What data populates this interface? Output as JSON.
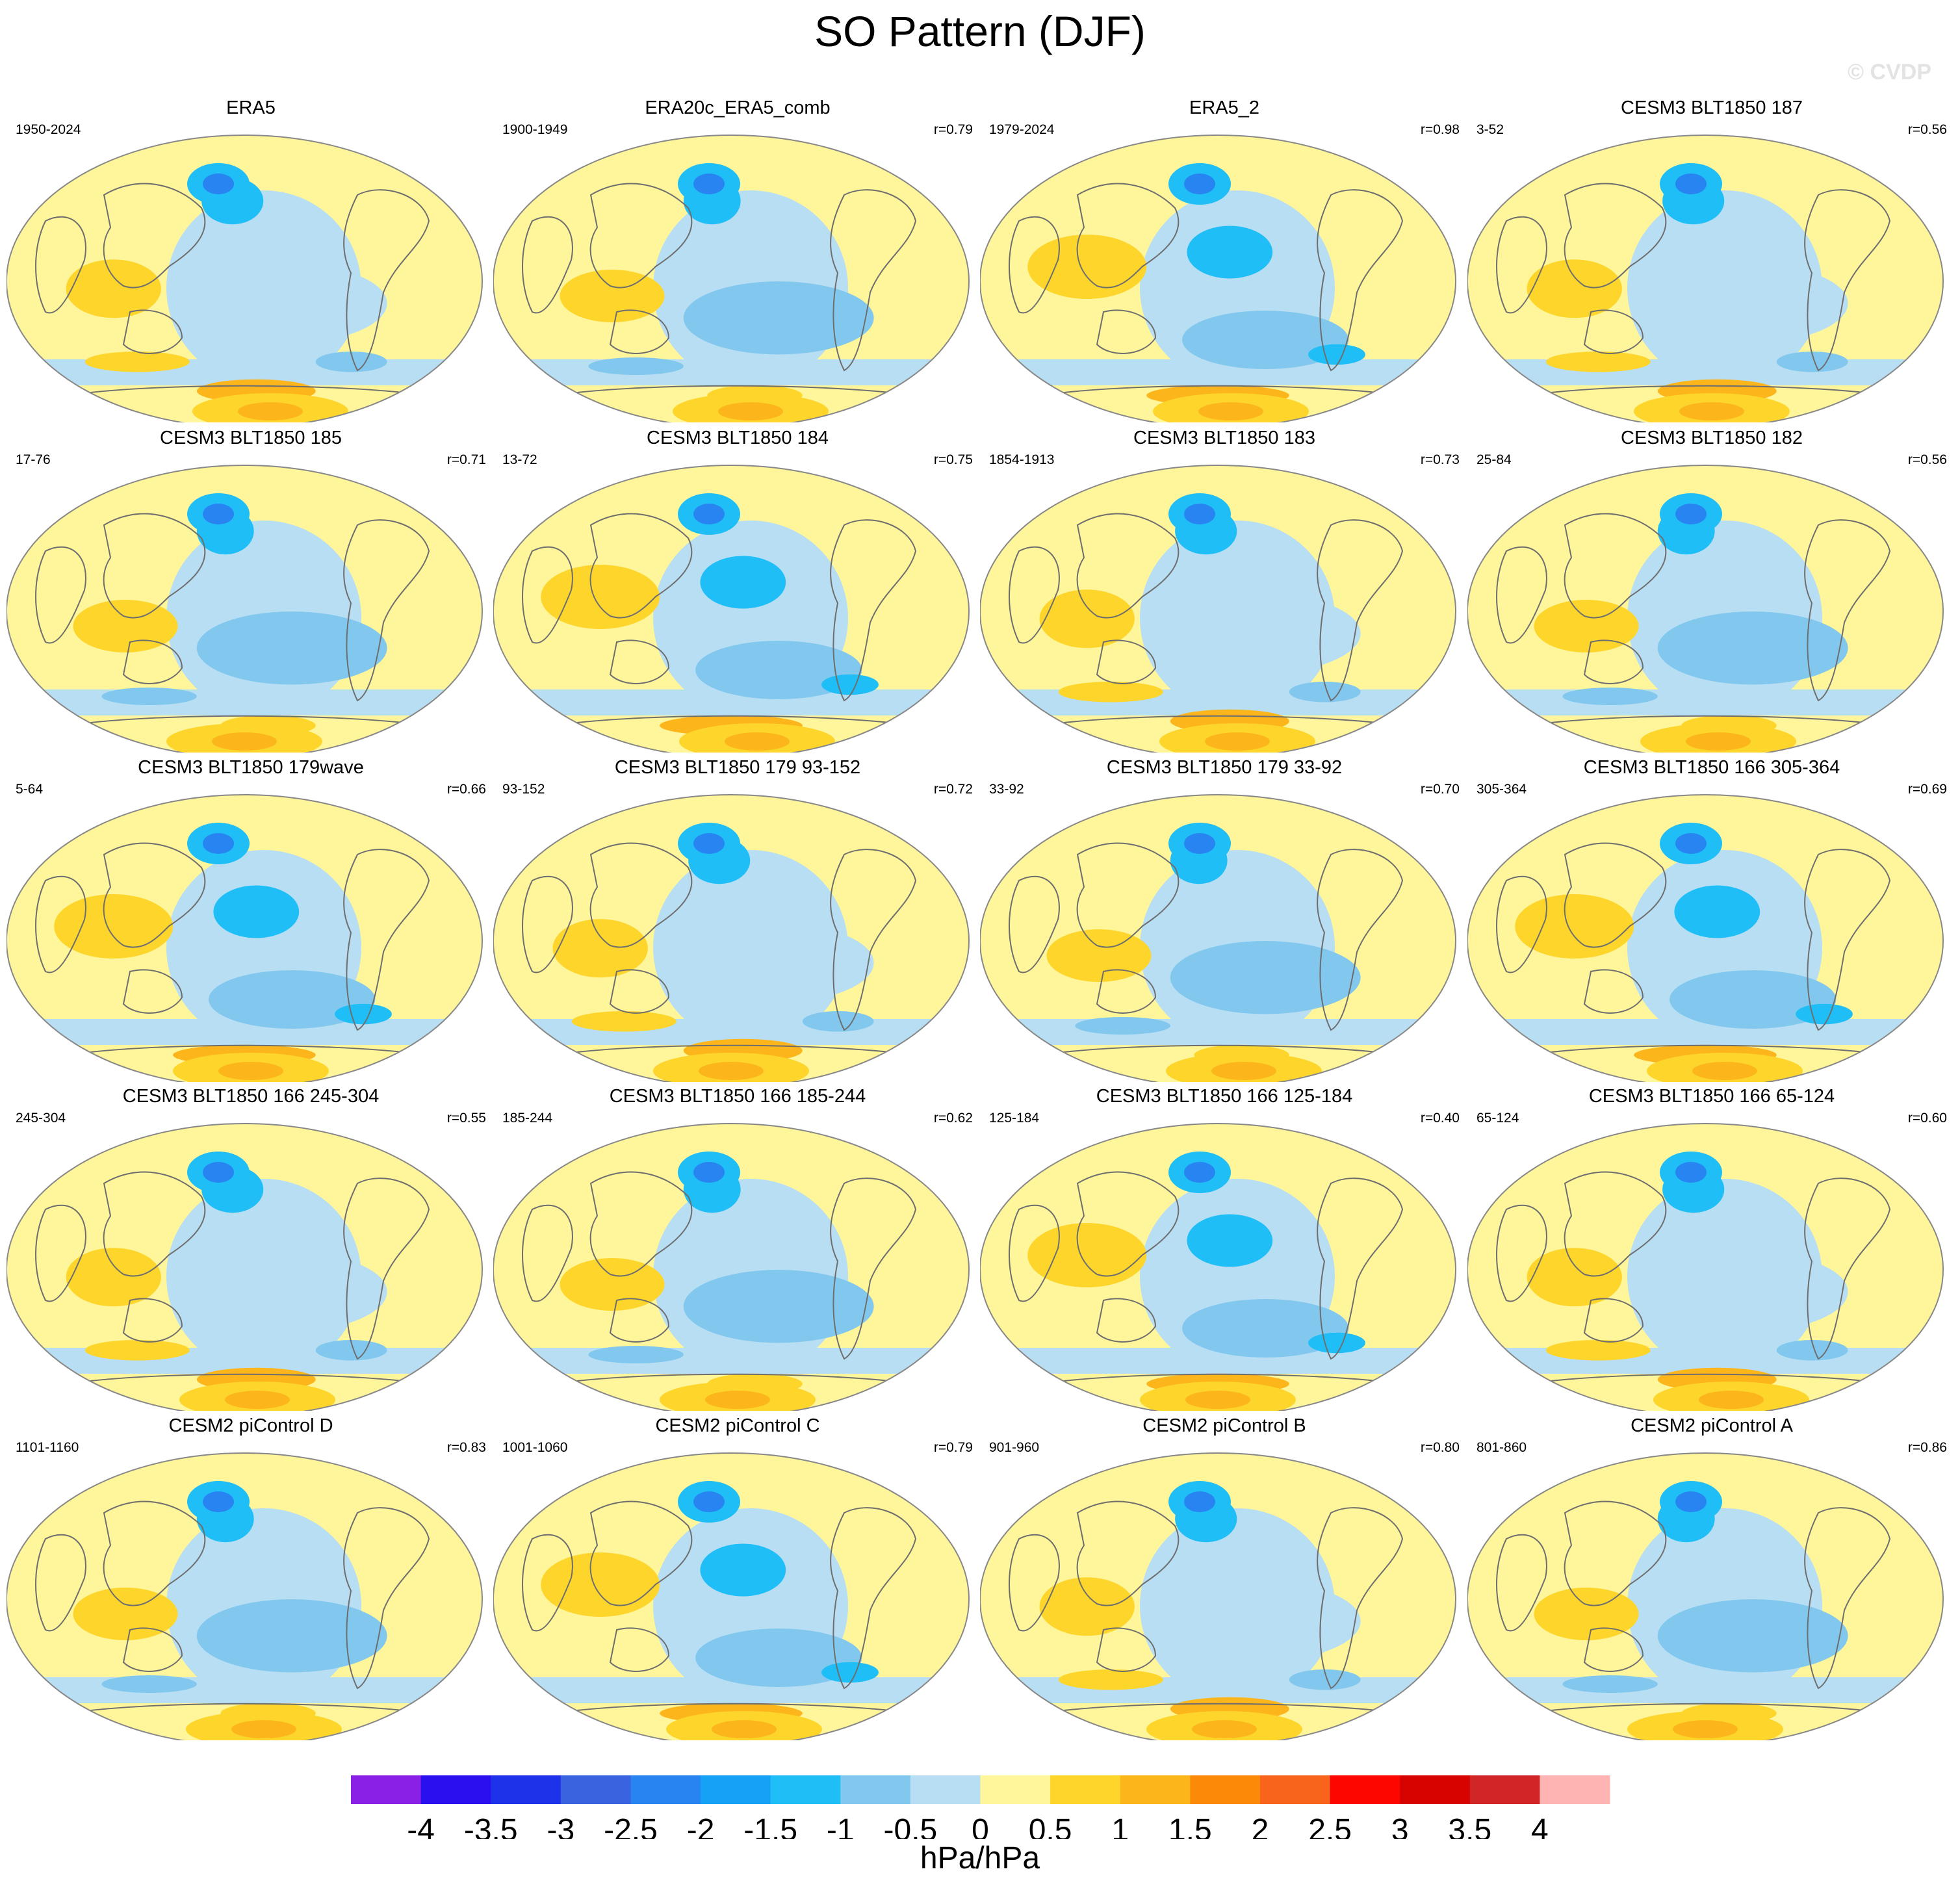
{
  "title": "SO Pattern (DJF)",
  "watermark": "© CVDP",
  "units": "hPa/hPa",
  "colors": {
    "land_outline": "#6e6e6e",
    "map_border": "#888888",
    "scale": [
      "#8a1fe6",
      "#2a10ee",
      "#1e32ea",
      "#3a63e0",
      "#2784f0",
      "#15a2f6",
      "#20bef6",
      "#82c8ee",
      "#b8def3",
      "#fff59a",
      "#fdd52b",
      "#fdb51c",
      "#fb8a08",
      "#f8641c",
      "#fe0600",
      "#d70300",
      "#d02628",
      "#fdb4b2"
    ]
  },
  "colorbar": {
    "tick_labels": [
      "-4",
      "-3.5",
      "-3",
      "-2.5",
      "-2",
      "-1.5",
      "-1",
      "-0.5",
      "0",
      "0.5",
      "1",
      "1.5",
      "2",
      "2.5",
      "3",
      "3.5",
      "4"
    ]
  },
  "panels": [
    {
      "title": "ERA5",
      "period": "1950-2024",
      "r": ""
    },
    {
      "title": "ERA20c_ERA5_comb",
      "period": "1900-1949",
      "r": "r=0.79"
    },
    {
      "title": "ERA5_2",
      "period": "1979-2024",
      "r": "r=0.98"
    },
    {
      "title": "CESM3 BLT1850 187",
      "period": "3-52",
      "r": "r=0.56"
    },
    {
      "title": "CESM3 BLT1850 185",
      "period": "17-76",
      "r": "r=0.71"
    },
    {
      "title": "CESM3 BLT1850 184",
      "period": "13-72",
      "r": "r=0.75"
    },
    {
      "title": "CESM3 BLT1850 183",
      "period": "1854-1913",
      "r": "r=0.73"
    },
    {
      "title": "CESM3 BLT1850 182",
      "period": "25-84",
      "r": "r=0.56"
    },
    {
      "title": "CESM3 BLT1850 179wave",
      "period": "5-64",
      "r": "r=0.66"
    },
    {
      "title": "CESM3 BLT1850 179 93-152",
      "period": "93-152",
      "r": "r=0.72"
    },
    {
      "title": "CESM3 BLT1850 179 33-92",
      "period": "33-92",
      "r": "r=0.70"
    },
    {
      "title": "CESM3 BLT1850 166 305-364",
      "period": "305-364",
      "r": "r=0.69"
    },
    {
      "title": "CESM3 BLT1850 166 245-304",
      "period": "245-304",
      "r": "r=0.55"
    },
    {
      "title": "CESM3 BLT1850 166 185-244",
      "period": "185-244",
      "r": "r=0.62"
    },
    {
      "title": "CESM3 BLT1850 166 125-184",
      "period": "125-184",
      "r": "r=0.40"
    },
    {
      "title": "CESM3 BLT1850 166 65-124",
      "period": "65-124",
      "r": "r=0.60"
    },
    {
      "title": "CESM2 piControl D",
      "period": "1101-1160",
      "r": "r=0.83"
    },
    {
      "title": "CESM2 piControl C",
      "period": "1001-1060",
      "r": "r=0.79"
    },
    {
      "title": "CESM2 piControl B",
      "period": "901-960",
      "r": "r=0.80"
    },
    {
      "title": "CESM2 piControl A",
      "period": "801-860",
      "r": "r=0.86"
    }
  ]
}
